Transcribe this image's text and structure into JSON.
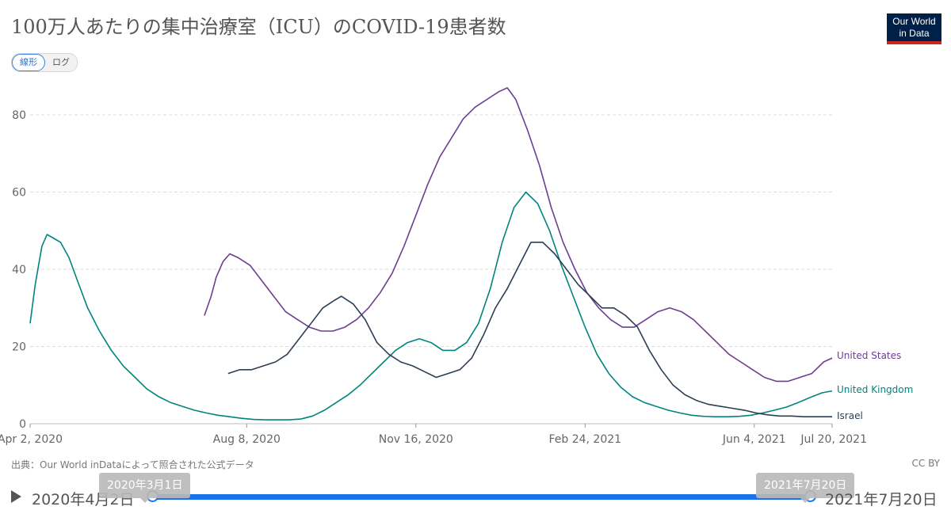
{
  "header": {
    "title": "100万人あたりの集中治療室（ICU）のCOVID-19患者数",
    "logo_line1": "Our World",
    "logo_line2": "in Data"
  },
  "scale_toggle": {
    "linear": "線形",
    "log": "ログ"
  },
  "footer": {
    "source": "出典：Our World inDataによって照合された公式データ",
    "license": "CC BY"
  },
  "timeline": {
    "start_label": "2020年4月2日",
    "end_label": "2021年7月20日",
    "start_tooltip": "2020年3月1日",
    "end_tooltip": "2021年7月20日"
  },
  "colors": {
    "us": "#6d3e91",
    "uk": "#00847e",
    "israel": "#2c3e55",
    "grid": "#dddddd",
    "accent": "#1a73e8"
  },
  "chart_data": {
    "type": "line",
    "title": "100万人あたりの集中治療室（ICU）のCOVID-19患者数",
    "ylim": [
      0,
      90
    ],
    "yticks": [
      0,
      20,
      40,
      60,
      80
    ],
    "grid": true,
    "x_tick_labels": [
      "Apr 2, 2020",
      "Aug 8, 2020",
      "Nov 16, 2020",
      "Feb 24, 2021",
      "Jun 4, 2021",
      "Jul 20, 2021"
    ],
    "x_tick_dates": [
      "2020-04-02",
      "2020-08-08",
      "2020-11-16",
      "2021-02-24",
      "2021-06-04",
      "2021-07-20"
    ],
    "x_range": [
      "2020-04-02",
      "2021-07-20"
    ],
    "legend": "inline-right",
    "series": [
      {
        "name": "United States",
        "color": "#6d3e91",
        "points": [
          [
            "2020-07-14",
            28
          ],
          [
            "2020-07-18",
            33
          ],
          [
            "2020-07-21",
            38
          ],
          [
            "2020-07-25",
            42
          ],
          [
            "2020-07-29",
            44
          ],
          [
            "2020-08-03",
            43
          ],
          [
            "2020-08-10",
            41
          ],
          [
            "2020-08-17",
            37
          ],
          [
            "2020-08-24",
            33
          ],
          [
            "2020-08-31",
            29
          ],
          [
            "2020-09-07",
            27
          ],
          [
            "2020-09-14",
            25
          ],
          [
            "2020-09-21",
            24
          ],
          [
            "2020-09-28",
            24
          ],
          [
            "2020-10-05",
            25
          ],
          [
            "2020-10-12",
            27
          ],
          [
            "2020-10-19",
            30
          ],
          [
            "2020-10-26",
            34
          ],
          [
            "2020-11-02",
            39
          ],
          [
            "2020-11-09",
            46
          ],
          [
            "2020-11-16",
            54
          ],
          [
            "2020-11-23",
            62
          ],
          [
            "2020-11-30",
            69
          ],
          [
            "2020-12-07",
            74
          ],
          [
            "2020-12-14",
            79
          ],
          [
            "2020-12-21",
            82
          ],
          [
            "2020-12-28",
            84
          ],
          [
            "2021-01-04",
            86
          ],
          [
            "2021-01-09",
            87
          ],
          [
            "2021-01-14",
            84
          ],
          [
            "2021-01-21",
            76
          ],
          [
            "2021-01-28",
            67
          ],
          [
            "2021-02-04",
            56
          ],
          [
            "2021-02-11",
            47
          ],
          [
            "2021-02-18",
            40
          ],
          [
            "2021-02-25",
            34
          ],
          [
            "2021-03-04",
            30
          ],
          [
            "2021-03-11",
            27
          ],
          [
            "2021-03-18",
            25
          ],
          [
            "2021-03-25",
            25
          ],
          [
            "2021-04-01",
            27
          ],
          [
            "2021-04-08",
            29
          ],
          [
            "2021-04-15",
            30
          ],
          [
            "2021-04-22",
            29
          ],
          [
            "2021-04-29",
            27
          ],
          [
            "2021-05-06",
            24
          ],
          [
            "2021-05-13",
            21
          ],
          [
            "2021-05-20",
            18
          ],
          [
            "2021-05-27",
            16
          ],
          [
            "2021-06-03",
            14
          ],
          [
            "2021-06-10",
            12
          ],
          [
            "2021-06-17",
            11
          ],
          [
            "2021-06-24",
            11
          ],
          [
            "2021-07-01",
            12
          ],
          [
            "2021-07-08",
            13
          ],
          [
            "2021-07-15",
            16
          ],
          [
            "2021-07-20",
            17
          ]
        ]
      },
      {
        "name": "United Kingdom",
        "color": "#00847e",
        "points": [
          [
            "2020-04-02",
            26
          ],
          [
            "2020-04-05",
            36
          ],
          [
            "2020-04-09",
            46
          ],
          [
            "2020-04-12",
            49
          ],
          [
            "2020-04-16",
            48
          ],
          [
            "2020-04-20",
            47
          ],
          [
            "2020-04-25",
            43
          ],
          [
            "2020-04-30",
            37
          ],
          [
            "2020-05-06",
            30
          ],
          [
            "2020-05-13",
            24
          ],
          [
            "2020-05-20",
            19
          ],
          [
            "2020-05-27",
            15
          ],
          [
            "2020-06-03",
            12
          ],
          [
            "2020-06-10",
            9
          ],
          [
            "2020-06-17",
            7
          ],
          [
            "2020-06-24",
            5.5
          ],
          [
            "2020-07-01",
            4.5
          ],
          [
            "2020-07-08",
            3.5
          ],
          [
            "2020-07-15",
            2.8
          ],
          [
            "2020-07-22",
            2.2
          ],
          [
            "2020-07-29",
            1.8
          ],
          [
            "2020-08-05",
            1.4
          ],
          [
            "2020-08-12",
            1.1
          ],
          [
            "2020-08-19",
            1.0
          ],
          [
            "2020-08-26",
            1.0
          ],
          [
            "2020-09-02",
            1.0
          ],
          [
            "2020-09-09",
            1.2
          ],
          [
            "2020-09-16",
            2.0
          ],
          [
            "2020-09-23",
            3.5
          ],
          [
            "2020-09-30",
            5.5
          ],
          [
            "2020-10-07",
            7.5
          ],
          [
            "2020-10-14",
            10
          ],
          [
            "2020-10-21",
            13
          ],
          [
            "2020-10-28",
            16
          ],
          [
            "2020-11-04",
            19
          ],
          [
            "2020-11-11",
            21
          ],
          [
            "2020-11-18",
            22
          ],
          [
            "2020-11-25",
            21
          ],
          [
            "2020-12-02",
            19
          ],
          [
            "2020-12-09",
            19
          ],
          [
            "2020-12-16",
            21
          ],
          [
            "2020-12-23",
            26
          ],
          [
            "2020-12-30",
            35
          ],
          [
            "2021-01-06",
            47
          ],
          [
            "2021-01-13",
            56
          ],
          [
            "2021-01-20",
            60
          ],
          [
            "2021-01-27",
            57
          ],
          [
            "2021-02-03",
            50
          ],
          [
            "2021-02-10",
            41
          ],
          [
            "2021-02-17",
            33
          ],
          [
            "2021-02-24",
            25
          ],
          [
            "2021-03-03",
            18
          ],
          [
            "2021-03-10",
            13
          ],
          [
            "2021-03-17",
            9.5
          ],
          [
            "2021-03-24",
            7
          ],
          [
            "2021-03-31",
            5.5
          ],
          [
            "2021-04-07",
            4.5
          ],
          [
            "2021-04-14",
            3.5
          ],
          [
            "2021-04-21",
            2.8
          ],
          [
            "2021-04-28",
            2.2
          ],
          [
            "2021-05-05",
            1.9
          ],
          [
            "2021-05-12",
            1.8
          ],
          [
            "2021-05-19",
            1.8
          ],
          [
            "2021-05-26",
            1.9
          ],
          [
            "2021-06-02",
            2.2
          ],
          [
            "2021-06-09",
            2.8
          ],
          [
            "2021-06-16",
            3.5
          ],
          [
            "2021-06-23",
            4.3
          ],
          [
            "2021-06-30",
            5.5
          ],
          [
            "2021-07-07",
            6.8
          ],
          [
            "2021-07-14",
            8
          ],
          [
            "2021-07-20",
            8.5
          ]
        ]
      },
      {
        "name": "Israel",
        "color": "#2c3e55",
        "points": [
          [
            "2020-07-28",
            13
          ],
          [
            "2020-08-04",
            14
          ],
          [
            "2020-08-11",
            14
          ],
          [
            "2020-08-18",
            15
          ],
          [
            "2020-08-25",
            16
          ],
          [
            "2020-09-01",
            18
          ],
          [
            "2020-09-08",
            22
          ],
          [
            "2020-09-15",
            26
          ],
          [
            "2020-09-22",
            30
          ],
          [
            "2020-09-29",
            32
          ],
          [
            "2020-10-03",
            33
          ],
          [
            "2020-10-10",
            31
          ],
          [
            "2020-10-17",
            27
          ],
          [
            "2020-10-24",
            21
          ],
          [
            "2020-10-31",
            18
          ],
          [
            "2020-11-07",
            16
          ],
          [
            "2020-11-14",
            15
          ],
          [
            "2020-11-21",
            13.5
          ],
          [
            "2020-11-28",
            12
          ],
          [
            "2020-12-05",
            13
          ],
          [
            "2020-12-12",
            14
          ],
          [
            "2020-12-19",
            17
          ],
          [
            "2020-12-26",
            23
          ],
          [
            "2021-01-02",
            30
          ],
          [
            "2021-01-09",
            35
          ],
          [
            "2021-01-16",
            41
          ],
          [
            "2021-01-23",
            47
          ],
          [
            "2021-01-30",
            47
          ],
          [
            "2021-02-06",
            44
          ],
          [
            "2021-02-13",
            40
          ],
          [
            "2021-02-20",
            36
          ],
          [
            "2021-02-27",
            33
          ],
          [
            "2021-03-06",
            30
          ],
          [
            "2021-03-13",
            30
          ],
          [
            "2021-03-20",
            28
          ],
          [
            "2021-03-27",
            25
          ],
          [
            "2021-04-03",
            19
          ],
          [
            "2021-04-10",
            14
          ],
          [
            "2021-04-17",
            10
          ],
          [
            "2021-04-24",
            7.5
          ],
          [
            "2021-05-01",
            6
          ],
          [
            "2021-05-08",
            5
          ],
          [
            "2021-05-15",
            4.5
          ],
          [
            "2021-05-22",
            4
          ],
          [
            "2021-05-29",
            3.5
          ],
          [
            "2021-06-05",
            2.8
          ],
          [
            "2021-06-12",
            2.3
          ],
          [
            "2021-06-19",
            2
          ],
          [
            "2021-06-26",
            2
          ],
          [
            "2021-07-03",
            1.8
          ],
          [
            "2021-07-10",
            1.8
          ],
          [
            "2021-07-20",
            1.8
          ]
        ]
      }
    ]
  }
}
